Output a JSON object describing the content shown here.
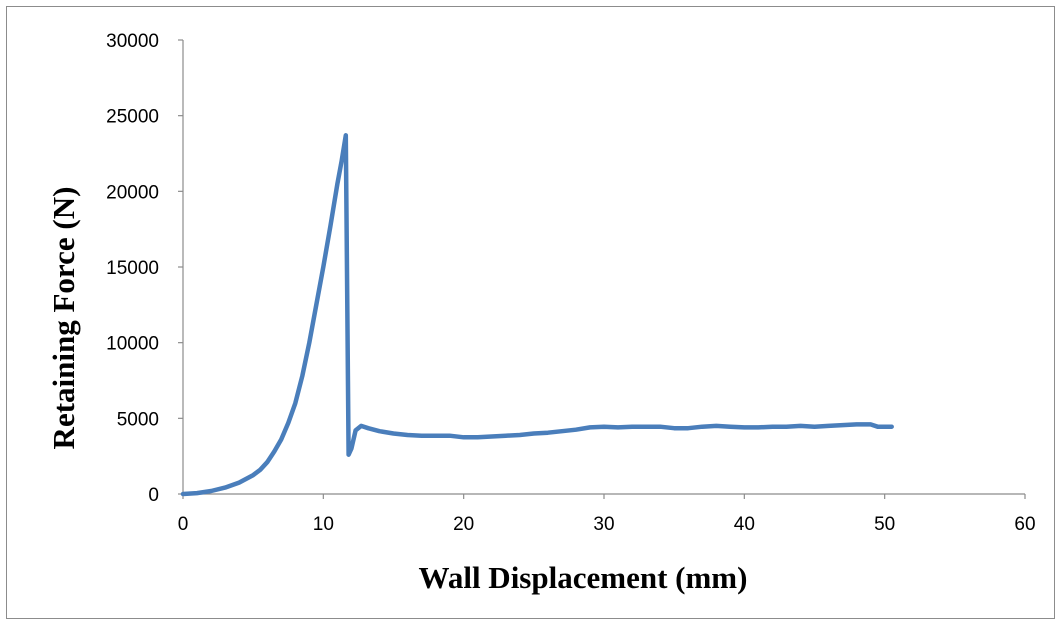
{
  "chart_data": {
    "type": "line",
    "title": "",
    "xlabel": "Wall Displacement (mm)",
    "ylabel": "Retaining Force (N)",
    "xlim": [
      0,
      60
    ],
    "ylim": [
      0,
      30000
    ],
    "x_ticks": [
      "0",
      "10",
      "20",
      "30",
      "40",
      "50",
      "60"
    ],
    "y_ticks": [
      "0",
      "5000",
      "10000",
      "15000",
      "20000",
      "25000",
      "30000"
    ],
    "grid": false,
    "legend": "none",
    "series": [
      {
        "color": "#4a7ebb",
        "x": [
          0,
          1,
          2,
          3,
          4,
          5,
          5.5,
          6,
          6.5,
          7,
          7.5,
          8,
          8.5,
          9,
          9.5,
          10,
          10.5,
          11,
          11.3,
          11.6,
          11.8,
          12.0,
          12.3,
          12.7,
          13.2,
          14,
          15,
          16,
          17,
          18,
          19,
          20,
          21,
          22,
          23,
          24,
          25,
          26,
          27,
          28,
          29,
          30,
          31,
          32,
          33,
          34,
          35,
          36,
          37,
          38,
          39,
          40,
          41,
          42,
          43,
          44,
          45,
          46,
          47,
          48,
          49,
          49.5,
          50,
          50.5
        ],
        "y": [
          0,
          60,
          200,
          420,
          750,
          1250,
          1600,
          2100,
          2800,
          3600,
          4700,
          6000,
          7800,
          10000,
          12500,
          15000,
          17700,
          20500,
          22000,
          23700,
          2600,
          3000,
          4200,
          4500,
          4350,
          4150,
          4000,
          3900,
          3850,
          3850,
          3850,
          3750,
          3750,
          3800,
          3850,
          3900,
          4000,
          4050,
          4150,
          4250,
          4400,
          4450,
          4400,
          4450,
          4450,
          4450,
          4350,
          4350,
          4450,
          4500,
          4450,
          4400,
          4400,
          4450,
          4450,
          4500,
          4450,
          4500,
          4550,
          4600,
          4600,
          4450,
          4450,
          4450
        ]
      }
    ]
  }
}
